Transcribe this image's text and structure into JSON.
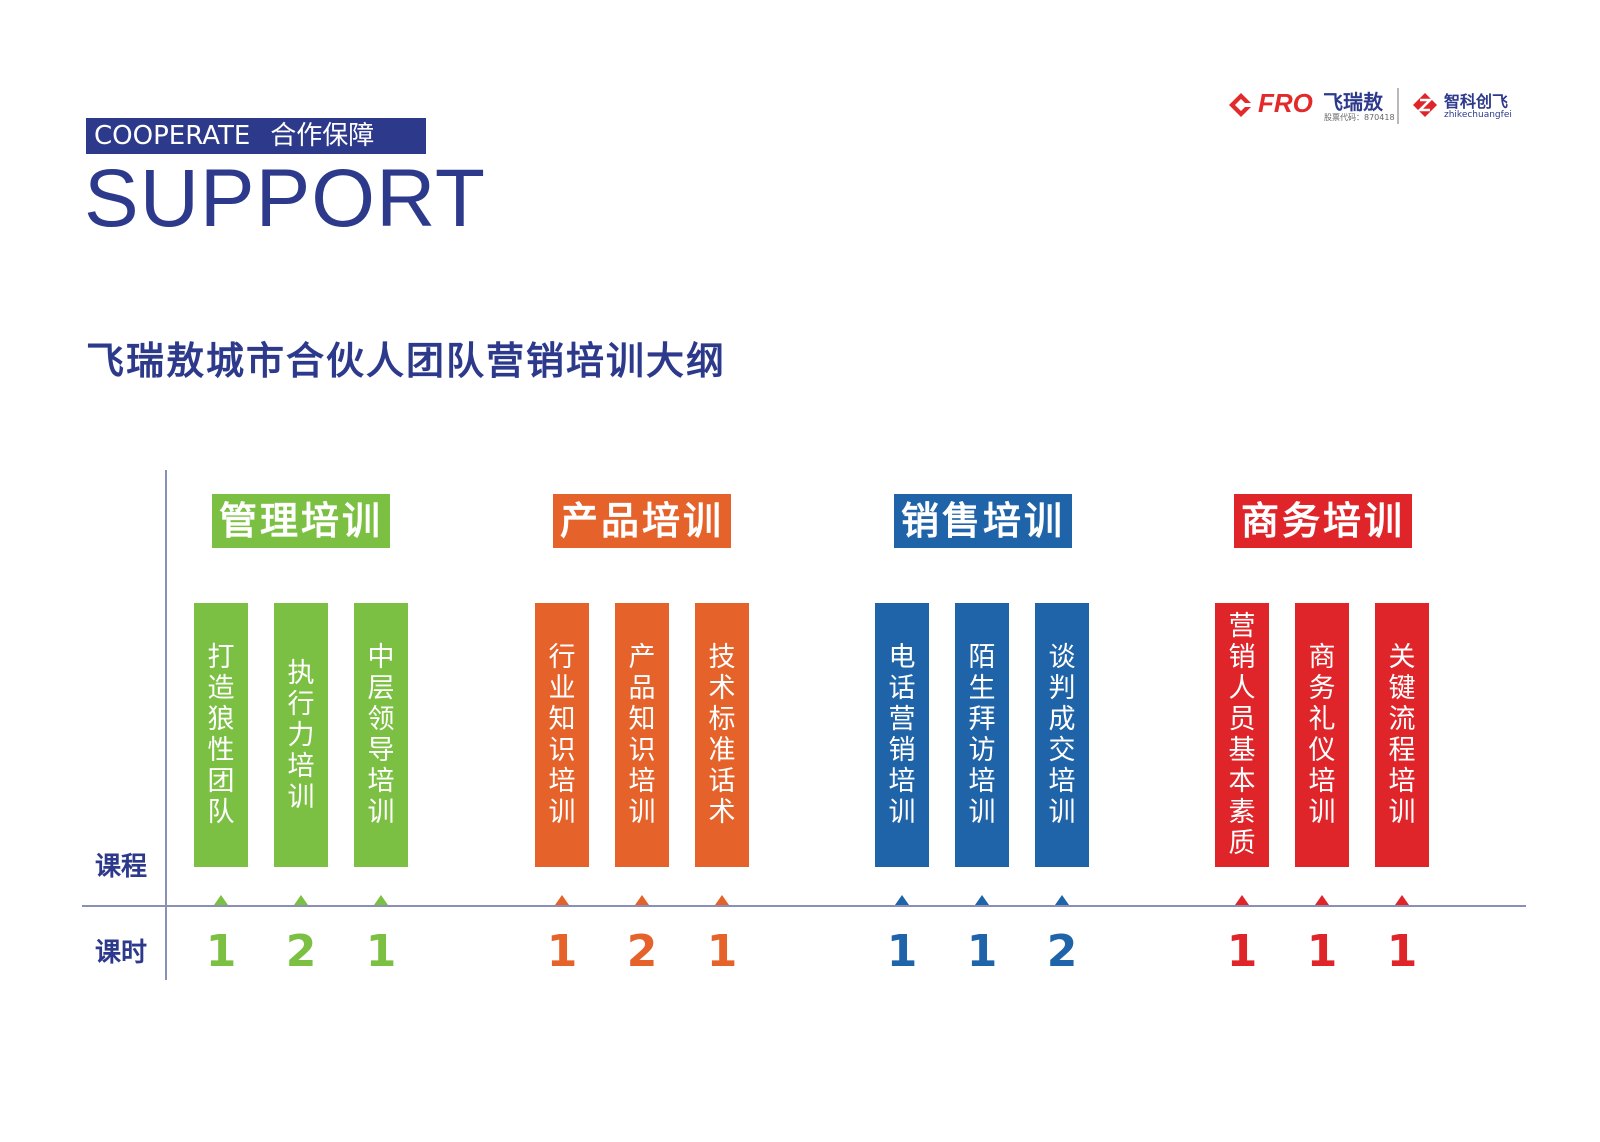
{
  "header": {
    "tag_en": "COOPERATE",
    "tag_cn": "合作保障",
    "big_title": "SUPPORT",
    "subtitle": "飞瑞敖城市合伙人团队营销培训大纲"
  },
  "logos": {
    "fro_text": "FRO",
    "fro_cn": "飞瑞敖",
    "fro_code": "股票代码：870418",
    "zk_cn": "智科创飞",
    "zk_en": "zhikechuangfei"
  },
  "row_labels": {
    "course": "课程",
    "hours": "课时"
  },
  "categories": [
    {
      "name": "管理培训",
      "color": "#7bc043",
      "courses": [
        {
          "title": "打造狼性团队",
          "hours": "1"
        },
        {
          "title": "执行力培训",
          "hours": "2"
        },
        {
          "title": "中层领导培训",
          "hours": "1"
        }
      ]
    },
    {
      "name": "产品培训",
      "color": "#e5622a",
      "courses": [
        {
          "title": "行业知识培训",
          "hours": "1"
        },
        {
          "title": "产品知识培训",
          "hours": "2"
        },
        {
          "title": "技术标准话术",
          "hours": "1"
        }
      ]
    },
    {
      "name": "销售培训",
      "color": "#1f63a8",
      "courses": [
        {
          "title": "电话营销培训",
          "hours": "1"
        },
        {
          "title": "陌生拜访培训",
          "hours": "1"
        },
        {
          "title": "谈判成交培训",
          "hours": "2"
        }
      ]
    },
    {
      "name": "商务培训",
      "color": "#e0252a",
      "courses": [
        {
          "title": "营销人员基本素质",
          "hours": "1"
        },
        {
          "title": "商务礼仪培训",
          "hours": "1"
        },
        {
          "title": "关键流程培训",
          "hours": "1"
        }
      ]
    }
  ]
}
